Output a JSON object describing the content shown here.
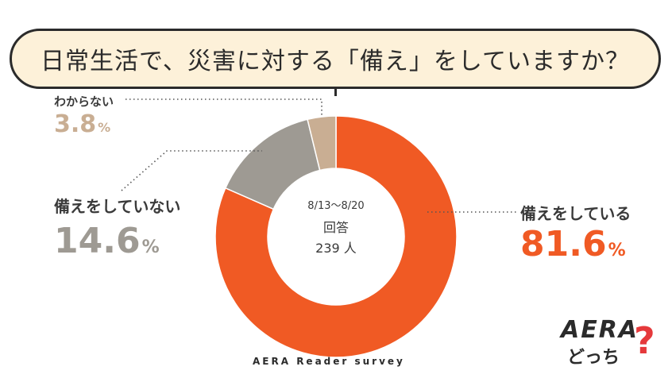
{
  "title": "日常生活で、災害に対する「備え」をしていますか？",
  "chart_data": {
    "type": "pie",
    "donut": true,
    "center_lines": [
      "8/13〜8/20",
      "回答",
      "239 人"
    ],
    "slices": [
      {
        "label": "備えをしている",
        "value": 81.6,
        "value_text": "81.6",
        "unit": "%",
        "color": "#f05a24",
        "label_color": "#3a3a3a"
      },
      {
        "label": "備えをしていない",
        "value": 14.6,
        "value_text": "14.6",
        "unit": "%",
        "color": "#9e9a93",
        "label_color": "#3a3a3a"
      },
      {
        "label": "わからない",
        "value": 3.8,
        "value_text": "3.8",
        "unit": "%",
        "color": "#c9ae93",
        "label_color": "#3a3a3a"
      }
    ]
  },
  "footer": "AERA Reader survey",
  "logo": {
    "word": "AERA",
    "sub": "どっち",
    "mark": "?"
  }
}
